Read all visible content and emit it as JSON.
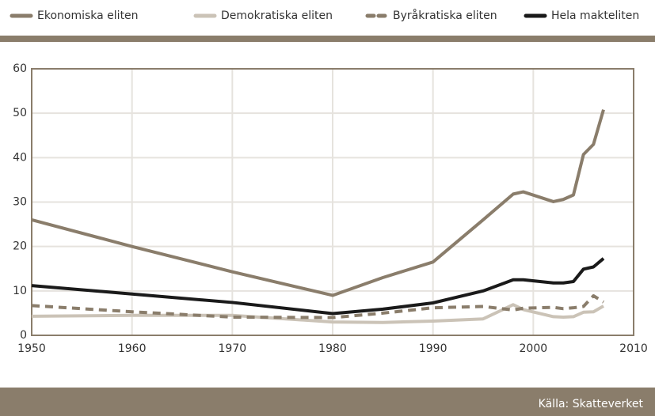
{
  "chart_data": {
    "type": "line",
    "x": [
      1950,
      1960,
      1970,
      1980,
      1985,
      1990,
      1995,
      1998,
      1999,
      2002,
      2003,
      2004,
      2005,
      2006,
      2007
    ],
    "series": [
      {
        "name": "Ekonomiska eliten",
        "color": "#8a7d6b",
        "dashed": false,
        "values": [
          26,
          20,
          14.3,
          9,
          13,
          16.5,
          26,
          31.8,
          32.3,
          30.1,
          30.6,
          31.6,
          40.7,
          43,
          50.8
        ]
      },
      {
        "name": "Demokratiska eliten",
        "color": "#cbc3b7",
        "dashed": false,
        "values": [
          4.3,
          4.5,
          4.5,
          3,
          2.9,
          3.2,
          3.7,
          6.9,
          5.8,
          4.2,
          4.1,
          4.2,
          5.2,
          5.3,
          6.6
        ]
      },
      {
        "name": "Byråkratiska eliten",
        "color": "#8a7d6b",
        "dashed": true,
        "values": [
          6.7,
          5.3,
          4.1,
          4,
          5,
          6.2,
          6.5,
          5.7,
          6.1,
          6.3,
          6.0,
          6.2,
          6.5,
          8.9,
          7.5
        ]
      },
      {
        "name": "Hela makteliten",
        "color": "#1a1a1a",
        "dashed": false,
        "values": [
          11.2,
          9.3,
          7.4,
          4.9,
          5.9,
          7.3,
          10,
          12.5,
          12.5,
          11.8,
          11.8,
          12.1,
          14.9,
          15.4,
          17.3
        ]
      }
    ],
    "xlim": [
      1950,
      2010
    ],
    "xticks": [
      1950,
      1960,
      1970,
      1980,
      1990,
      2000,
      2010
    ],
    "ylim": [
      0,
      60
    ],
    "yticks": [
      0,
      10,
      20,
      30,
      40,
      50,
      60
    ],
    "grid": true,
    "legend": "top",
    "source": "Källa: Skatteverket"
  }
}
